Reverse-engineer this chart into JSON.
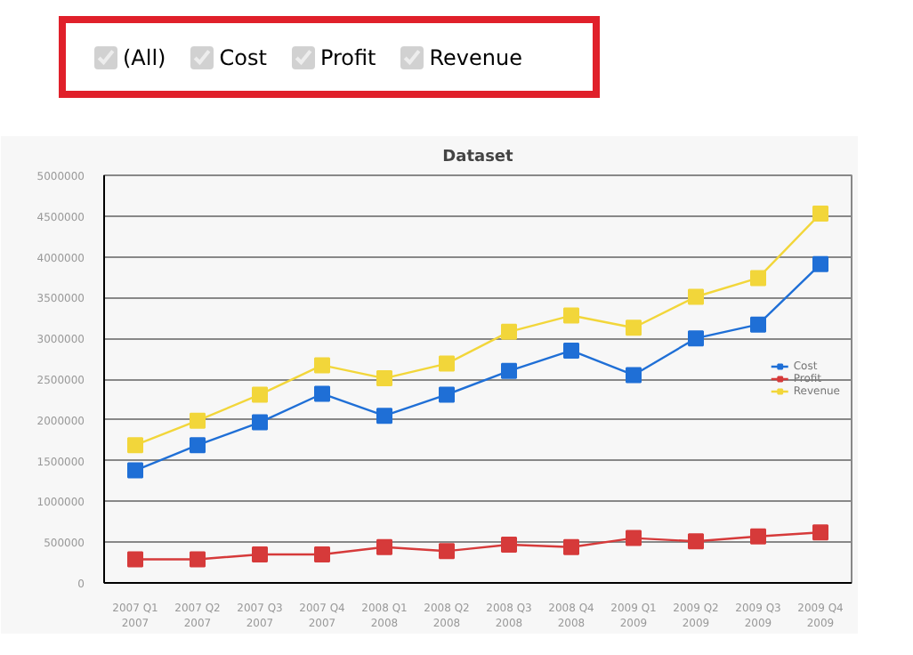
{
  "chart_data": {
    "type": "line",
    "title": "Dataset",
    "annotations": [
      "(All)",
      "Cost",
      "Profit",
      "Revenue"
    ],
    "categories": [
      "2007 Q1\n2007",
      "2007 Q2\n2007",
      "2007 Q3\n2007",
      "2007 Q4\n2007",
      "2008 Q1\n2008",
      "2008 Q2\n2008",
      "2008 Q3\n2008",
      "2008 Q4\n2008",
      "2009 Q1\n2009",
      "2009 Q2\n2009",
      "2009 Q3\n2009",
      "2009 Q4\n2009"
    ],
    "series": [
      {
        "name": "Cost",
        "color": "#1f6fd6",
        "values": [
          1380000,
          1690000,
          1970000,
          2320000,
          2050000,
          2310000,
          2600000,
          2850000,
          2550000,
          3000000,
          3170000,
          3910000
        ]
      },
      {
        "name": "Profit",
        "color": "#d63a3a",
        "values": [
          290000,
          290000,
          350000,
          350000,
          440000,
          390000,
          470000,
          440000,
          550000,
          510000,
          570000,
          620000
        ]
      },
      {
        "name": "Revenue",
        "color": "#f2d63a",
        "values": [
          1690000,
          1990000,
          2310000,
          2670000,
          2510000,
          2690000,
          3080000,
          3280000,
          3130000,
          3510000,
          3740000,
          4530000
        ]
      }
    ],
    "ylim": [
      0,
      5000000
    ],
    "yticks": [
      0,
      500000,
      1000000,
      1500000,
      2000000,
      2500000,
      3000000,
      3500000,
      4000000,
      4500000,
      5000000
    ],
    "grid": "y",
    "legend": "right",
    "marker": "square",
    "line_style": "solid"
  }
}
